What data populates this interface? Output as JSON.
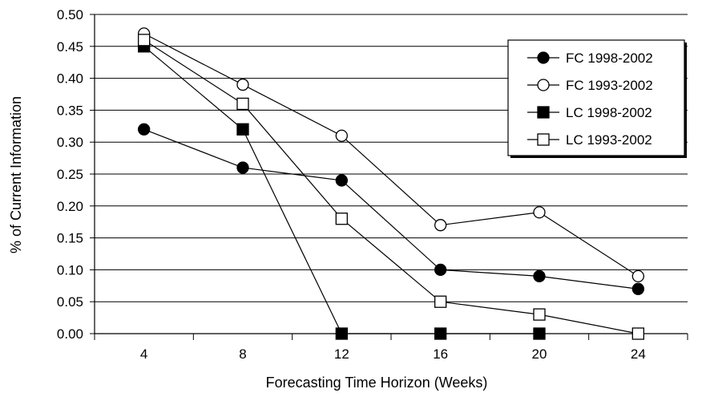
{
  "chart_data": {
    "type": "line",
    "title": "",
    "xlabel": "Forecasting Time Horizon (Weeks)",
    "ylabel": "% of Current Information",
    "x": [
      4,
      8,
      12,
      16,
      20,
      24
    ],
    "x_tick_labels": [
      "4",
      "8",
      "12",
      "16",
      "20",
      "24"
    ],
    "ylim": [
      0,
      0.5
    ],
    "y_tick_labels": [
      "0.00",
      "0.05",
      "0.10",
      "0.15",
      "0.20",
      "0.25",
      "0.30",
      "0.35",
      "0.40",
      "0.45",
      "0.50"
    ],
    "grid": "horizontal",
    "legend_position": "top-right",
    "series": [
      {
        "name": "FC 1998-2002",
        "marker": "filled-circle",
        "values": [
          0.32,
          0.26,
          0.24,
          0.1,
          0.09,
          0.07
        ]
      },
      {
        "name": "FC 1993-2002",
        "marker": "open-circle",
        "values": [
          0.47,
          0.39,
          0.31,
          0.17,
          0.19,
          0.09
        ]
      },
      {
        "name": "LC 1998-2002",
        "marker": "filled-square",
        "values": [
          0.45,
          0.32,
          0.0,
          0.0,
          0.0,
          null
        ]
      },
      {
        "name": "LC 1993-2002",
        "marker": "open-square",
        "values": [
          0.46,
          0.36,
          0.18,
          0.05,
          0.03,
          0.0
        ]
      }
    ]
  }
}
